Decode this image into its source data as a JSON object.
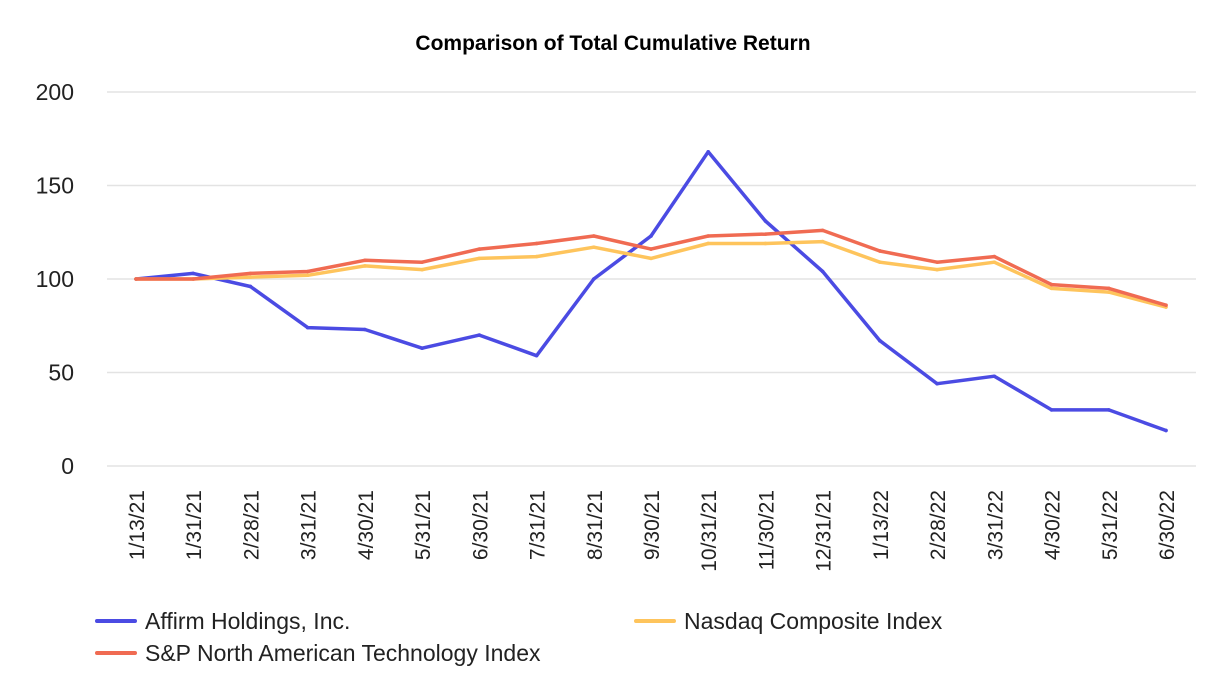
{
  "chart_data": {
    "type": "line",
    "title": "Comparison of Total Cumulative Return",
    "xlabel": "",
    "ylabel": "",
    "ylim": [
      0,
      200
    ],
    "yticks": [
      0,
      50,
      100,
      150,
      200
    ],
    "grid": true,
    "legend_position": "bottom",
    "categories": [
      "1/13/21",
      "1/31/21",
      "2/28/21",
      "3/31/21",
      "4/30/21",
      "5/31/21",
      "6/30/21",
      "7/31/21",
      "8/31/21",
      "9/30/21",
      "10/31/21",
      "11/30/21",
      "12/31/21",
      "1/13/22",
      "2/28/22",
      "3/31/22",
      "4/30/22",
      "5/31/22",
      "6/30/22"
    ],
    "series": [
      {
        "name": "Affirm Holdings, Inc.",
        "color": "#4b4be3",
        "values": [
          100,
          103,
          96,
          74,
          73,
          63,
          70,
          59,
          100,
          123,
          168,
          131,
          104,
          67,
          44,
          48,
          30,
          30,
          19
        ]
      },
      {
        "name": "Nasdaq Composite Index",
        "color": "#fec45c",
        "values": [
          100,
          100,
          101,
          102,
          107,
          105,
          111,
          112,
          117,
          111,
          119,
          119,
          120,
          109,
          105,
          109,
          95,
          93,
          85
        ]
      },
      {
        "name": "S&P North American Technology Index",
        "color": "#f06b52",
        "values": [
          100,
          100,
          103,
          104,
          110,
          109,
          116,
          119,
          123,
          116,
          123,
          124,
          126,
          115,
          109,
          112,
          97,
          95,
          86
        ]
      }
    ]
  }
}
